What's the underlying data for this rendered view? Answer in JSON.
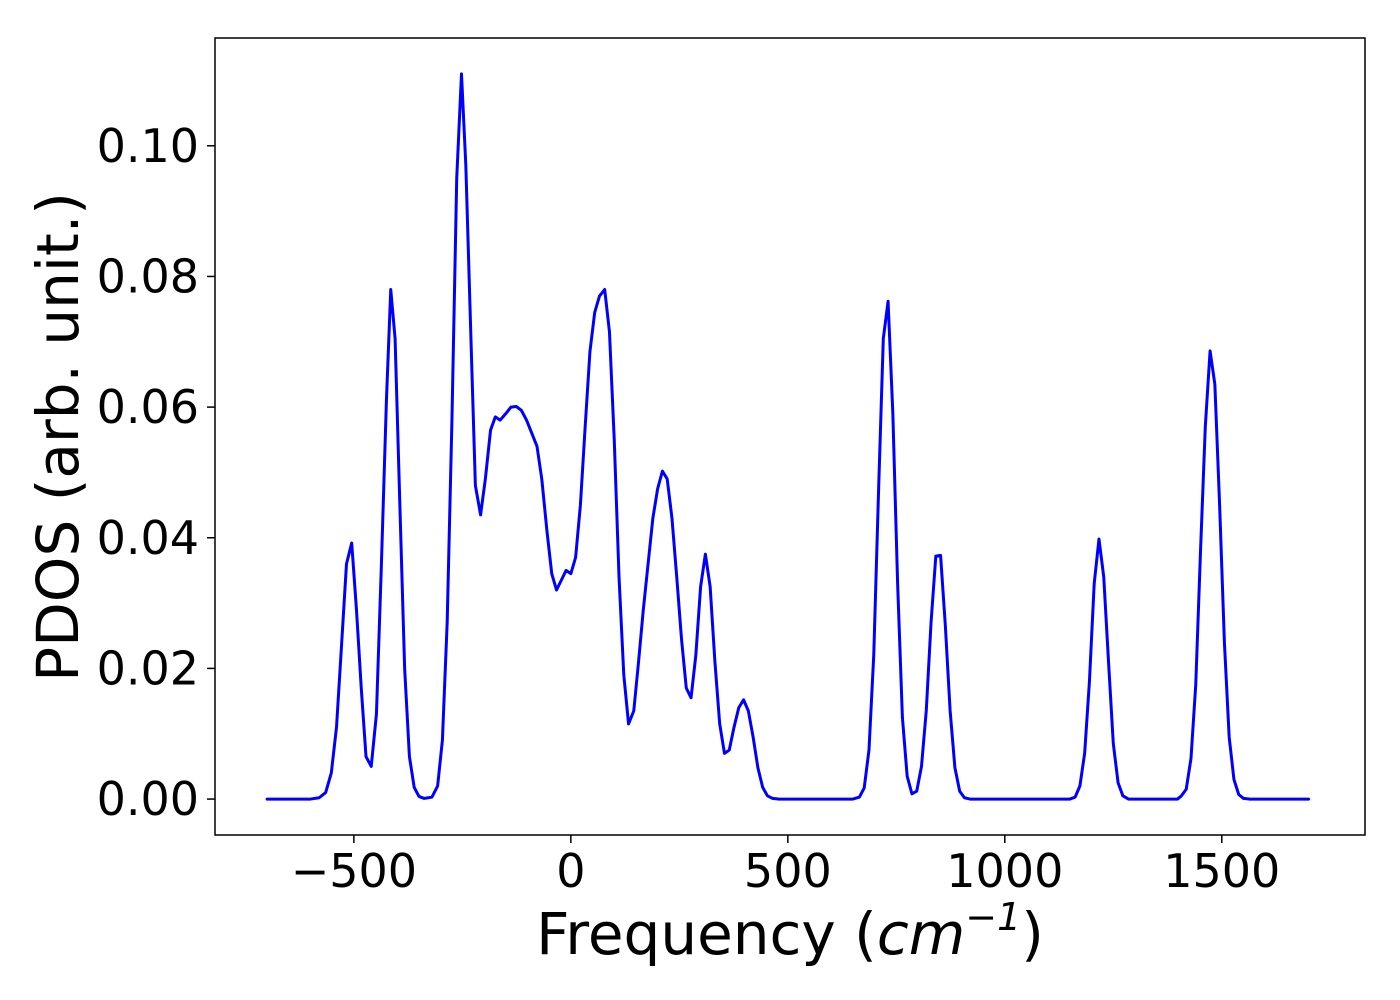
{
  "chart_data": {
    "type": "line",
    "xlabel": "Frequency (",
    "xlabel_math": "cm",
    "xlabel_exp": "−1",
    "xlabel_close": ")",
    "ylabel": "PDOS (arb. unit.)",
    "xlim": [
      -820,
      1830
    ],
    "ylim": [
      -0.0055,
      0.1165
    ],
    "grid": false,
    "xticks": [
      -500,
      0,
      500,
      1000,
      1500
    ],
    "xtick_labels": [
      "−500",
      "0",
      "500",
      "1000",
      "1500"
    ],
    "yticks": [
      0.0,
      0.02,
      0.04,
      0.06,
      0.08,
      0.1
    ],
    "ytick_labels": [
      "0.00",
      "0.02",
      "0.04",
      "0.06",
      "0.08",
      "0.10"
    ],
    "series": [
      {
        "color": "#0000ff",
        "points": [
          [
            -700,
            0.0
          ],
          [
            -600,
            0.0
          ],
          [
            -580,
            0.0002
          ],
          [
            -565,
            0.001
          ],
          [
            -552,
            0.004
          ],
          [
            -540,
            0.011
          ],
          [
            -528,
            0.024
          ],
          [
            -517,
            0.036
          ],
          [
            -505,
            0.0392
          ],
          [
            -494,
            0.029
          ],
          [
            -483,
            0.017
          ],
          [
            -472,
            0.0065
          ],
          [
            -460,
            0.005
          ],
          [
            -448,
            0.013
          ],
          [
            -437,
            0.035
          ],
          [
            -425,
            0.061
          ],
          [
            -415,
            0.078
          ],
          [
            -405,
            0.0705
          ],
          [
            -394,
            0.045
          ],
          [
            -383,
            0.02
          ],
          [
            -372,
            0.0065
          ],
          [
            -361,
            0.0018
          ],
          [
            -350,
            0.0004
          ],
          [
            -338,
            0.0001
          ],
          [
            -320,
            0.0003
          ],
          [
            -307,
            0.002
          ],
          [
            -296,
            0.009
          ],
          [
            -285,
            0.027
          ],
          [
            -274,
            0.058
          ],
          [
            -263,
            0.095
          ],
          [
            -252,
            0.111
          ],
          [
            -242,
            0.097
          ],
          [
            -230,
            0.07
          ],
          [
            -220,
            0.048
          ],
          [
            -208,
            0.0435
          ],
          [
            -197,
            0.049
          ],
          [
            -185,
            0.0565
          ],
          [
            -174,
            0.0585
          ],
          [
            -163,
            0.058
          ],
          [
            -150,
            0.059
          ],
          [
            -138,
            0.06
          ],
          [
            -126,
            0.0601
          ],
          [
            -114,
            0.0595
          ],
          [
            -102,
            0.058
          ],
          [
            -90,
            0.056
          ],
          [
            -78,
            0.054
          ],
          [
            -67,
            0.049
          ],
          [
            -55,
            0.041
          ],
          [
            -44,
            0.0345
          ],
          [
            -33,
            0.032
          ],
          [
            -22,
            0.0335
          ],
          [
            -11,
            0.035
          ],
          [
            0,
            0.0345
          ],
          [
            11,
            0.037
          ],
          [
            22,
            0.045
          ],
          [
            33,
            0.057
          ],
          [
            44,
            0.0685
          ],
          [
            55,
            0.0745
          ],
          [
            66,
            0.077
          ],
          [
            78,
            0.078
          ],
          [
            89,
            0.0715
          ],
          [
            100,
            0.055
          ],
          [
            111,
            0.034
          ],
          [
            122,
            0.019
          ],
          [
            133,
            0.0115
          ],
          [
            145,
            0.0135
          ],
          [
            156,
            0.021
          ],
          [
            167,
            0.029
          ],
          [
            178,
            0.036
          ],
          [
            189,
            0.043
          ],
          [
            200,
            0.0475
          ],
          [
            211,
            0.0502
          ],
          [
            222,
            0.049
          ],
          [
            233,
            0.043
          ],
          [
            244,
            0.034
          ],
          [
            255,
            0.0245
          ],
          [
            266,
            0.017
          ],
          [
            277,
            0.0155
          ],
          [
            288,
            0.022
          ],
          [
            299,
            0.0325
          ],
          [
            310,
            0.0375
          ],
          [
            321,
            0.0325
          ],
          [
            332,
            0.021
          ],
          [
            343,
            0.0115
          ],
          [
            354,
            0.007
          ],
          [
            365,
            0.0075
          ],
          [
            376,
            0.011
          ],
          [
            387,
            0.014
          ],
          [
            398,
            0.0152
          ],
          [
            409,
            0.0135
          ],
          [
            420,
            0.0095
          ],
          [
            431,
            0.0048
          ],
          [
            442,
            0.0018
          ],
          [
            453,
            0.0005
          ],
          [
            465,
            0.0001
          ],
          [
            480,
            0.0
          ],
          [
            650,
            0.0
          ],
          [
            665,
            0.0003
          ],
          [
            676,
            0.0017
          ],
          [
            687,
            0.0075
          ],
          [
            698,
            0.022
          ],
          [
            709,
            0.047
          ],
          [
            720,
            0.0705
          ],
          [
            731,
            0.0762
          ],
          [
            742,
            0.059
          ],
          [
            753,
            0.033
          ],
          [
            764,
            0.0125
          ],
          [
            775,
            0.0035
          ],
          [
            786,
            0.0008
          ],
          [
            797,
            0.0012
          ],
          [
            808,
            0.005
          ],
          [
            819,
            0.0135
          ],
          [
            830,
            0.027
          ],
          [
            841,
            0.0372
          ],
          [
            852,
            0.0373
          ],
          [
            863,
            0.0265
          ],
          [
            874,
            0.0135
          ],
          [
            885,
            0.0048
          ],
          [
            896,
            0.0012
          ],
          [
            907,
            0.0002
          ],
          [
            920,
            0.0
          ],
          [
            1150,
            0.0
          ],
          [
            1162,
            0.0003
          ],
          [
            1173,
            0.002
          ],
          [
            1184,
            0.007
          ],
          [
            1195,
            0.018
          ],
          [
            1206,
            0.033
          ],
          [
            1217,
            0.0398
          ],
          [
            1228,
            0.034
          ],
          [
            1239,
            0.021
          ],
          [
            1250,
            0.0085
          ],
          [
            1261,
            0.0025
          ],
          [
            1272,
            0.0005
          ],
          [
            1285,
            0.0
          ],
          [
            1398,
            0.0
          ],
          [
            1407,
            0.0005
          ],
          [
            1418,
            0.0015
          ],
          [
            1429,
            0.0062
          ],
          [
            1440,
            0.0175
          ],
          [
            1451,
            0.038
          ],
          [
            1462,
            0.057
          ],
          [
            1473,
            0.0686
          ],
          [
            1484,
            0.0635
          ],
          [
            1495,
            0.045
          ],
          [
            1506,
            0.024
          ],
          [
            1517,
            0.0095
          ],
          [
            1528,
            0.003
          ],
          [
            1539,
            0.0007
          ],
          [
            1550,
            0.0001
          ],
          [
            1565,
            0.0
          ],
          [
            1700,
            0.0
          ]
        ]
      }
    ]
  }
}
